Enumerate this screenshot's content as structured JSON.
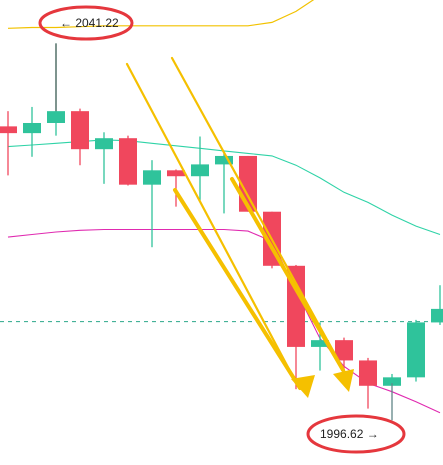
{
  "chart_data": {
    "type": "candlestick",
    "y_range": [
      1992,
      2046
    ],
    "candles": [
      {
        "open": 2031.4,
        "close": 2030.6,
        "high": 2033.2,
        "low": 2025.6
      },
      {
        "open": 2030.6,
        "close": 2031.8,
        "high": 2033.7,
        "low": 2027.8
      },
      {
        "open": 2031.8,
        "close": 2033.2,
        "high": 2041.22,
        "low": 2030.3
      },
      {
        "open": 2033.2,
        "close": 2028.7,
        "high": 2033.5,
        "low": 2026.8
      },
      {
        "open": 2028.7,
        "close": 2030.0,
        "high": 2030.7,
        "low": 2024.6
      },
      {
        "open": 2030.0,
        "close": 2024.5,
        "high": 2030.3,
        "low": 2024.4
      },
      {
        "open": 2024.5,
        "close": 2026.2,
        "high": 2027.4,
        "low": 2017.1
      },
      {
        "open": 2026.2,
        "close": 2025.5,
        "high": 2026.3,
        "low": 2021.9
      },
      {
        "open": 2025.5,
        "close": 2026.9,
        "high": 2030.2,
        "low": 2022.6
      },
      {
        "open": 2026.9,
        "close": 2027.9,
        "high": 2028.4,
        "low": 2021.1
      },
      {
        "open": 2027.9,
        "close": 2021.3,
        "high": 2027.9,
        "low": 2021.3
      },
      {
        "open": 2021.3,
        "close": 2014.9,
        "high": 2021.3,
        "low": 2014.6
      },
      {
        "open": 2014.9,
        "close": 2005.3,
        "high": 2015.0,
        "low": 2000.3
      },
      {
        "open": 2005.3,
        "close": 2006.1,
        "high": 2008.2,
        "low": 2002.5
      },
      {
        "open": 2006.1,
        "close": 2003.7,
        "high": 2006.4,
        "low": 2002.0
      },
      {
        "open": 2003.7,
        "close": 2000.7,
        "high": 2004.0,
        "low": 1998.0
      },
      {
        "open": 2000.7,
        "close": 2001.7,
        "high": 2002.1,
        "low": 1996.62
      },
      {
        "open": 2001.7,
        "close": 2008.2,
        "high": 2008.5,
        "low": 2001.2
      },
      {
        "open": 2008.2,
        "close": 2009.8,
        "high": 2012.6,
        "low": 2007.9
      }
    ],
    "overlays": [
      {
        "name": "",
        "color": "#f2c200",
        "values": [
          2043.0,
          2043.1,
          2043.1,
          2043.2,
          2043.3,
          2043.3,
          2043.3,
          2043.3,
          2043.3,
          2043.3,
          2043.3,
          2043.7,
          2045.0,
          2046.9,
          2048.8
        ]
      },
      {
        "name": "",
        "color": "#2fd3a7",
        "values": [
          2029.0,
          2029.2,
          2029.4,
          2029.6,
          2029.8,
          2029.7,
          2029.4,
          2029.1,
          2028.8,
          2028.5,
          2028.2,
          2027.9,
          2026.8,
          2025.3,
          2023.6,
          2022.4,
          2020.9,
          2019.6,
          2018.6
        ]
      },
      {
        "name": "",
        "color": "#e02ab0",
        "values": [
          2018.3,
          2018.6,
          2018.9,
          2019.1,
          2019.2,
          2019.2,
          2019.2,
          2019.2,
          2019.2,
          2019.2,
          2019.0,
          2017.8,
          2012.0,
          2006.3,
          2003.0,
          2001.0,
          2000.0,
          1998.8,
          1997.5
        ]
      }
    ],
    "current_price_line": 2008.3,
    "annotations": {
      "high": {
        "text": "← 2041.22",
        "value": 2041.22
      },
      "low": {
        "text": "1996.62 →",
        "value": 1996.62
      }
    },
    "arrows_color": "#f5c000"
  }
}
